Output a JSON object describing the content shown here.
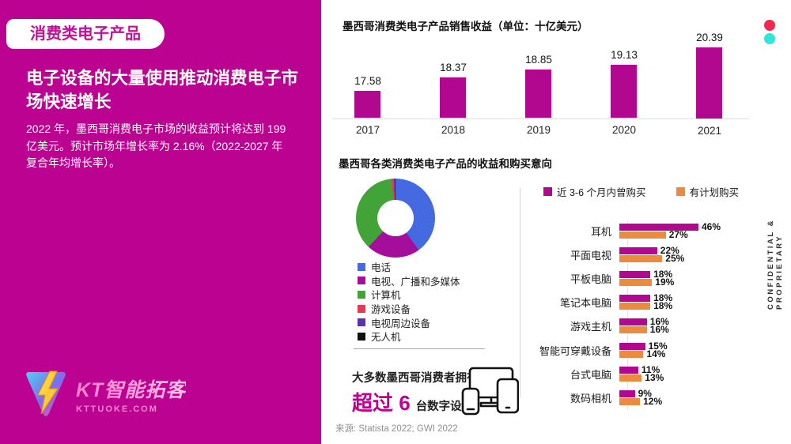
{
  "accent_colors": {
    "brand_magenta": "#bb0290",
    "bar_magenta": "#b1088f",
    "bar_orange": "#ec8b3f",
    "dot_red": "#f4274e",
    "dot_teal": "#2ee6d6"
  },
  "sidebar": {
    "badge": "消费类电子产品",
    "heading": "电子设备的大量使用推动消费电子市场快速增长",
    "description": "2022 年，墨西哥消费电子市场的收益预计将达到 199 亿美元。预计市场年增长率为 2.16%（2022-2027 年 复合年均增长率）。",
    "logo": {
      "name": "KT智能拓客",
      "url": "KTTUOKE.COM"
    }
  },
  "ownership": {
    "prefix": "大多数墨西哥消费者拥有",
    "highlight": "超过 6",
    "suffix": "台数字设备"
  },
  "footer": {
    "source": "来源: Statista 2022; GWI 2022",
    "confidential": "CONFIDENTIAL & PROPRIETARY"
  },
  "chart_data": [
    {
      "type": "bar",
      "title": "墨西哥消费类电子产品销售收益（单位：十亿美元）",
      "categories": [
        "2017",
        "2018",
        "2019",
        "2020",
        "2021"
      ],
      "values": [
        17.58,
        18.37,
        18.85,
        19.13,
        20.39
      ],
      "bar_color": "#b1088f",
      "ylim": [
        16,
        21
      ],
      "grid": false,
      "note": "value labels shown above bars; no y-axis drawn"
    },
    {
      "type": "pie",
      "title": "墨西哥各类消费类电子产品的收益和购买意向",
      "labels": [
        "电话",
        "电视、广播和多媒体",
        "计算机",
        "游戏设备",
        "电视周边设备",
        "无人机"
      ],
      "values_pct": [
        40,
        22,
        36.4,
        1.0,
        0.4,
        0.2
      ],
      "colors": [
        "#4569e0",
        "#a50e9b",
        "#42a438",
        "#e33b55",
        "#5b35a8",
        "#111111"
      ],
      "legend_position": "below",
      "note": "donut chart, no numeric labels; slice sizes estimated from arc angles"
    },
    {
      "type": "bar",
      "orientation": "horizontal",
      "categories": [
        "耳机",
        "平面电视",
        "平板电脑",
        "笔记本电脑",
        "游戏主机",
        "智能可穿戴设备",
        "台式电脑",
        "数码相机"
      ],
      "series": [
        {
          "name": "近 3-6 个月内曾购买",
          "color": "#b1088f",
          "values": [
            46,
            22,
            18,
            18,
            16,
            15,
            11,
            9
          ]
        },
        {
          "name": "有计划购买",
          "color": "#ec8b3f",
          "values": [
            27,
            25,
            19,
            18,
            16,
            14,
            13,
            12
          ]
        }
      ],
      "value_suffix": "%",
      "xlim": [
        0,
        46
      ],
      "legend_position": "top"
    }
  ]
}
